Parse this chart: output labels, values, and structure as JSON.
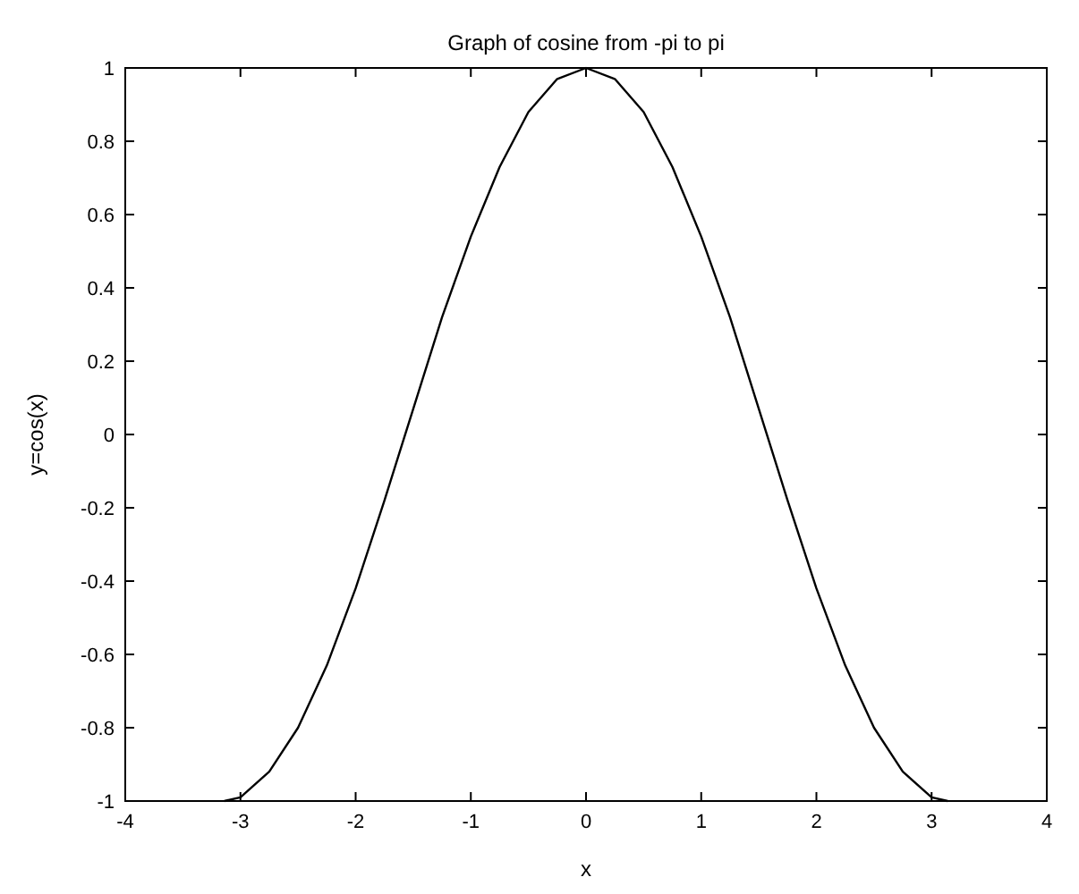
{
  "chart_data": {
    "type": "line",
    "title": "Graph of cosine from -pi to pi",
    "xlabel": "x",
    "ylabel": "y=cos(x)",
    "x": [
      -3.14,
      -3,
      -2.75,
      -2.5,
      -2.25,
      -2,
      -1.75,
      -1.5,
      -1.25,
      -1,
      -0.75,
      -0.5,
      -0.25,
      0,
      0.25,
      0.5,
      0.75,
      1,
      1.25,
      1.5,
      1.75,
      2,
      2.25,
      2.5,
      2.75,
      3,
      3.14
    ],
    "series": [
      {
        "color": "#000000",
        "values": [
          -1,
          -0.99,
          -0.92,
          -0.8,
          -0.63,
          -0.42,
          -0.18,
          0.07,
          0.32,
          0.54,
          0.73,
          0.88,
          0.97,
          1,
          0.97,
          0.88,
          0.73,
          0.54,
          0.32,
          0.07,
          -0.18,
          -0.42,
          -0.63,
          -0.8,
          -0.92,
          -0.99,
          -1
        ]
      }
    ],
    "xlim": [
      -4,
      4
    ],
    "xticks": [
      -4,
      -3,
      -2,
      -1,
      0,
      1,
      2,
      3,
      4
    ],
    "ylim": [
      -1,
      1
    ],
    "yticks": [
      -1,
      -0.8,
      -0.6,
      -0.4,
      -0.2,
      0,
      0.2,
      0.4,
      0.6,
      0.8,
      1
    ],
    "grid": false,
    "marker": "none",
    "line_style": "solid"
  }
}
